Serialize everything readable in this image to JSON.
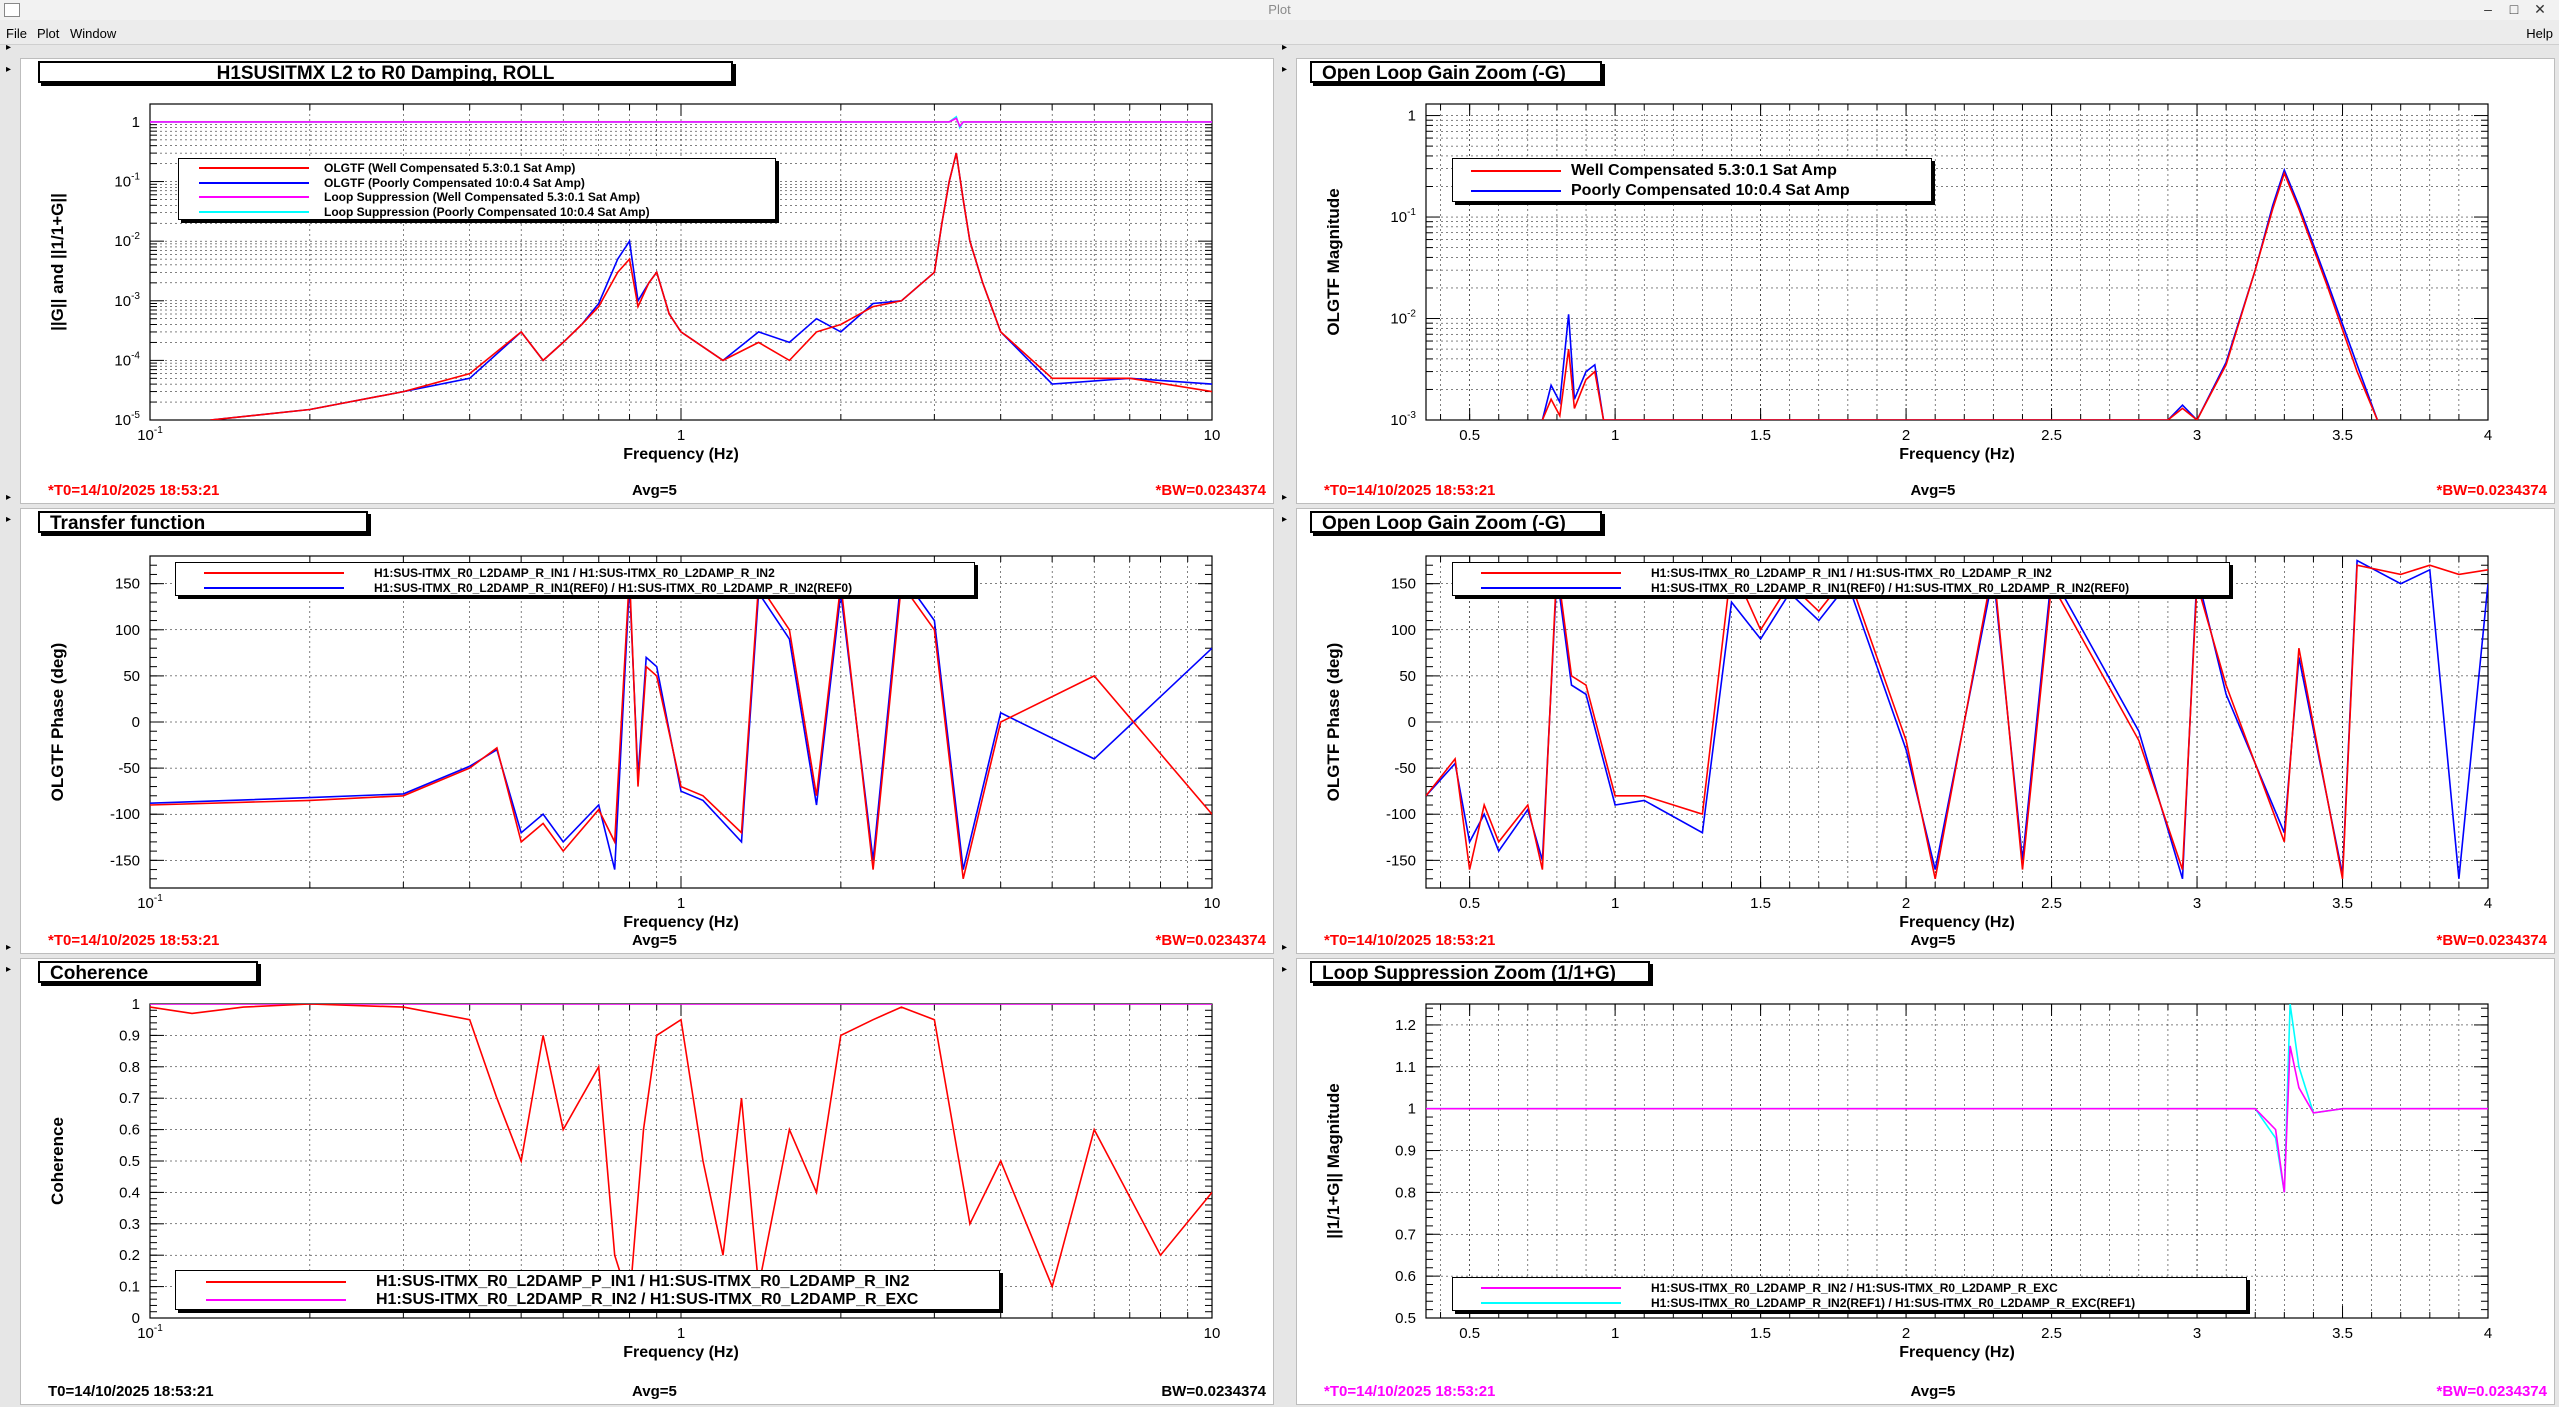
{
  "window": {
    "title": "Plot"
  },
  "menu": [
    "File",
    "Plot",
    "Window"
  ],
  "menu_help": "Help",
  "colors": {
    "red": "#ff0000",
    "blue": "#0000ff",
    "magenta": "#ff00ff",
    "cyan": "#00ffff",
    "black": "#000000"
  },
  "panels": [
    {
      "title": "H1SUSITMX L2 to R0 Damping, ROLL",
      "ylabel": "||G|| and ||1/1+G||",
      "xlabel": "Frequency (Hz)",
      "footer_left": "*T0=14/10/2025 18:53:21",
      "footer_mid": "Avg=5",
      "footer_right": "*BW=0.0234374",
      "legend": [
        "OLGTF (Well Compensated 5.3:0.1 Sat Amp)",
        "OLGTF (Poorly Compensated 10:0.4 Sat Amp)",
        "Loop Suppression (Well Compensated 5.3:0.1 Sat Amp)",
        "Loop Suppression (Poorly Compensated 10:0.4 Sat Amp)"
      ]
    },
    {
      "title": "Open Loop Gain Zoom (-G)",
      "ylabel": "OLGTF Magnitude",
      "xlabel": "Frequency (Hz)",
      "footer_left": "*T0=14/10/2025 18:53:21",
      "footer_mid": "Avg=5",
      "footer_right": "*BW=0.0234374",
      "legend": [
        "Well Compensated 5.3:0.1 Sat Amp",
        "Poorly Compensated 10:0.4 Sat Amp"
      ]
    },
    {
      "title": "Transfer function",
      "ylabel": "OLGTF Phase (deg)",
      "xlabel": "Frequency (Hz)",
      "footer_left": "*T0=14/10/2025 18:53:21",
      "footer_mid": "Avg=5",
      "footer_right": "*BW=0.0234374",
      "legend": [
        "H1:SUS-ITMX_R0_L2DAMP_R_IN1 / H1:SUS-ITMX_R0_L2DAMP_R_IN2",
        "H1:SUS-ITMX_R0_L2DAMP_R_IN1(REF0) / H1:SUS-ITMX_R0_L2DAMP_R_IN2(REF0)"
      ]
    },
    {
      "title": "Open Loop Gain Zoom (-G)",
      "ylabel": "OLGTF Phase (deg)",
      "xlabel": "Frequency (Hz)",
      "footer_left": "*T0=14/10/2025 18:53:21",
      "footer_mid": "Avg=5",
      "footer_right": "*BW=0.0234374",
      "legend": [
        "H1:SUS-ITMX_R0_L2DAMP_R_IN1 / H1:SUS-ITMX_R0_L2DAMP_R_IN2",
        "H1:SUS-ITMX_R0_L2DAMP_R_IN1(REF0) / H1:SUS-ITMX_R0_L2DAMP_R_IN2(REF0)"
      ]
    },
    {
      "title": "Coherence",
      "ylabel": "Coherence",
      "xlabel": "Frequency (Hz)",
      "footer_left": "T0=14/10/2025 18:53:21",
      "footer_mid": "Avg=5",
      "footer_right": "BW=0.0234374",
      "legend": [
        "H1:SUS-ITMX_R0_L2DAMP_P_IN1 / H1:SUS-ITMX_R0_L2DAMP_R_IN2",
        "H1:SUS-ITMX_R0_L2DAMP_R_IN2 / H1:SUS-ITMX_R0_L2DAMP_R_EXC"
      ]
    },
    {
      "title": "Loop Suppression Zoom (1/1+G)",
      "ylabel": "||1/1+G|| Magnitude",
      "xlabel": "Frequency (Hz)",
      "footer_left": "*T0=14/10/2025 18:53:21",
      "footer_mid": "Avg=5",
      "footer_right": "*BW=0.0234374",
      "legend": [
        "H1:SUS-ITMX_R0_L2DAMP_R_IN2 / H1:SUS-ITMX_R0_L2DAMP_R_EXC",
        "H1:SUS-ITMX_R0_L2DAMP_R_IN2(REF1) / H1:SUS-ITMX_R0_L2DAMP_R_EXC(REF1)"
      ]
    }
  ],
  "chart_data": [
    {
      "type": "line",
      "title": "H1SUSITMX L2 to R0 Damping, ROLL",
      "xlabel": "Frequency (Hz)",
      "ylabel": "||G|| and ||1/1+G||",
      "xscale": "log",
      "yscale": "log",
      "xlim": [
        0.1,
        10
      ],
      "ylim": [
        1e-05,
        2
      ],
      "xticks": [
        "10^-1",
        "1",
        "10"
      ],
      "yticks": [
        "10^-5",
        "10^-4",
        "10^-3",
        "10^-2",
        "10^-1",
        "1"
      ],
      "grid": true,
      "legend_position": "top-left",
      "series": [
        {
          "name": "OLGTF (Well Compensated 5.3:0.1 Sat Amp)",
          "color": "#ff0000",
          "x": [
            0.13,
            0.2,
            0.3,
            0.4,
            0.5,
            0.55,
            0.6,
            0.65,
            0.7,
            0.76,
            0.8,
            0.83,
            0.87,
            0.9,
            0.95,
            1.0,
            1.2,
            1.4,
            1.6,
            1.8,
            2.0,
            2.3,
            2.6,
            3.0,
            3.1,
            3.2,
            3.3,
            3.4,
            3.5,
            3.7,
            4.0,
            5.0,
            7.0,
            10.0
          ],
          "y": [
            1e-05,
            1.5e-05,
            3e-05,
            6e-05,
            0.0003,
            0.0001,
            0.0002,
            0.0004,
            0.0008,
            0.003,
            0.005,
            0.0008,
            0.002,
            0.003,
            0.0006,
            0.0003,
            0.0001,
            0.0002,
            0.0001,
            0.0003,
            0.0004,
            0.0008,
            0.001,
            0.003,
            0.02,
            0.1,
            0.3,
            0.05,
            0.01,
            0.002,
            0.0003,
            5e-05,
            5e-05,
            3e-05
          ]
        },
        {
          "name": "OLGTF (Poorly Compensated 10:0.4 Sat Amp)",
          "color": "#0000ff",
          "x": [
            0.13,
            0.2,
            0.3,
            0.4,
            0.5,
            0.55,
            0.6,
            0.65,
            0.7,
            0.76,
            0.8,
            0.83,
            0.87,
            0.9,
            0.95,
            1.0,
            1.2,
            1.4,
            1.6,
            1.8,
            2.0,
            2.3,
            2.6,
            3.0,
            3.1,
            3.2,
            3.3,
            3.4,
            3.5,
            3.7,
            4.0,
            5.0,
            7.0,
            10.0
          ],
          "y": [
            1e-05,
            1.5e-05,
            3e-05,
            5e-05,
            0.0003,
            0.0001,
            0.0002,
            0.0004,
            0.0009,
            0.005,
            0.01,
            0.001,
            0.002,
            0.003,
            0.0006,
            0.0003,
            0.0001,
            0.0003,
            0.0002,
            0.0005,
            0.0003,
            0.0009,
            0.001,
            0.003,
            0.02,
            0.1,
            0.3,
            0.05,
            0.01,
            0.002,
            0.0003,
            4e-05,
            5e-05,
            4e-05
          ]
        },
        {
          "name": "Loop Suppression (Well Compensated 5.3:0.1 Sat Amp)",
          "color": "#ff00ff",
          "x": [
            0.1,
            3.2,
            3.3,
            3.35,
            3.4,
            10.0
          ],
          "y": [
            1,
            1,
            1.15,
            0.85,
            1,
            1
          ]
        },
        {
          "name": "Loop Suppression (Poorly Compensated 10:0.4 Sat Amp)",
          "color": "#00ffff",
          "x": [
            0.1,
            3.2,
            3.3,
            3.35,
            3.4,
            10.0
          ],
          "y": [
            1,
            1,
            1.22,
            0.8,
            1,
            1
          ]
        }
      ]
    },
    {
      "type": "line",
      "title": "Open Loop Gain Zoom (-G)",
      "xlabel": "Frequency (Hz)",
      "ylabel": "OLGTF Magnitude",
      "xscale": "linear",
      "yscale": "log",
      "xlim": [
        0.35,
        4
      ],
      "ylim": [
        0.001,
        1.3
      ],
      "xticks": [
        "0.5",
        "1",
        "1.5",
        "2",
        "2.5",
        "3",
        "3.5",
        "4"
      ],
      "yticks": [
        "10^-3",
        "10^-2",
        "10^-1",
        "1"
      ],
      "grid": true,
      "legend_position": "top-left",
      "series": [
        {
          "name": "Well Compensated 5.3:0.1 Sat Amp",
          "color": "#ff0000",
          "x": [
            0.75,
            0.78,
            0.81,
            0.84,
            0.86,
            0.9,
            0.93,
            0.96,
            2.9,
            2.95,
            3.0,
            3.1,
            3.2,
            3.26,
            3.3,
            3.35,
            3.45,
            3.55,
            3.62
          ],
          "y": [
            0.001,
            0.0016,
            0.0011,
            0.005,
            0.0013,
            0.0025,
            0.003,
            0.001,
            0.001,
            0.0013,
            0.001,
            0.0035,
            0.03,
            0.12,
            0.27,
            0.12,
            0.02,
            0.003,
            0.001
          ]
        },
        {
          "name": "Poorly Compensated 10:0.4 Sat Amp",
          "color": "#0000ff",
          "x": [
            0.75,
            0.78,
            0.81,
            0.84,
            0.86,
            0.9,
            0.93,
            0.96,
            2.9,
            2.95,
            3.0,
            3.1,
            3.2,
            3.26,
            3.3,
            3.35,
            3.45,
            3.55,
            3.62
          ],
          "y": [
            0.001,
            0.0022,
            0.0015,
            0.011,
            0.0016,
            0.003,
            0.0035,
            0.001,
            0.001,
            0.0014,
            0.001,
            0.0037,
            0.03,
            0.13,
            0.29,
            0.13,
            0.022,
            0.0035,
            0.001
          ]
        }
      ]
    },
    {
      "type": "line",
      "title": "Transfer function",
      "xlabel": "Frequency (Hz)",
      "ylabel": "OLGTF Phase (deg)",
      "xscale": "log",
      "yscale": "linear",
      "xlim": [
        0.1,
        10
      ],
      "ylim": [
        -180,
        180
      ],
      "xticks": [
        "10^-1",
        "1",
        "10"
      ],
      "yticks": [
        "-150",
        "-100",
        "-50",
        "0",
        "50",
        "100",
        "150"
      ],
      "grid": true,
      "legend_position": "top",
      "series": [
        {
          "name": "H1:SUS-ITMX_R0_L2DAMP_R_IN1 / H1:SUS-ITMX_R0_L2DAMP_R_IN2",
          "color": "#ff0000",
          "x": [
            0.1,
            0.2,
            0.3,
            0.4,
            0.45,
            0.5,
            0.55,
            0.6,
            0.7,
            0.75,
            0.8,
            0.83,
            0.86,
            0.9,
            1.0,
            1.1,
            1.3,
            1.4,
            1.6,
            1.8,
            2.0,
            2.3,
            2.6,
            3.0,
            3.4,
            4.0,
            6.0,
            10.0
          ],
          "y": [
            -90,
            -85,
            -80,
            -50,
            -28,
            -130,
            -110,
            -140,
            -95,
            -130,
            160,
            -70,
            60,
            50,
            -70,
            -80,
            -120,
            150,
            100,
            -80,
            150,
            -160,
            150,
            100,
            -170,
            0,
            50,
            -100
          ]
        },
        {
          "name": "H1:SUS-ITMX_R0_L2DAMP_R_IN1(REF0) / H1:SUS-ITMX_R0_L2DAMP_R_IN2(REF0)",
          "color": "#0000ff",
          "x": [
            0.1,
            0.2,
            0.3,
            0.4,
            0.45,
            0.5,
            0.55,
            0.6,
            0.7,
            0.75,
            0.8,
            0.83,
            0.86,
            0.9,
            1.0,
            1.1,
            1.3,
            1.4,
            1.6,
            1.8,
            2.0,
            2.3,
            2.6,
            3.0,
            3.4,
            4.0,
            6.0,
            10.0
          ],
          "y": [
            -88,
            -82,
            -78,
            -48,
            -30,
            -120,
            -100,
            -130,
            -90,
            -160,
            150,
            -60,
            70,
            60,
            -75,
            -85,
            -130,
            140,
            90,
            -90,
            140,
            -150,
            160,
            110,
            -160,
            10,
            -40,
            80
          ]
        }
      ]
    },
    {
      "type": "line",
      "title": "Open Loop Gain Zoom (-G)",
      "xlabel": "Frequency (Hz)",
      "ylabel": "OLGTF Phase (deg)",
      "xscale": "linear",
      "yscale": "linear",
      "xlim": [
        0.35,
        4
      ],
      "ylim": [
        -180,
        180
      ],
      "xticks": [
        "0.5",
        "1",
        "1.5",
        "2",
        "2.5",
        "3",
        "3.5",
        "4"
      ],
      "yticks": [
        "-150",
        "-100",
        "-50",
        "0",
        "50",
        "100",
        "150"
      ],
      "grid": true,
      "legend_position": "top",
      "series": [
        {
          "name": "H1:SUS-ITMX_R0_L2DAMP_R_IN1 / H1:SUS-ITMX_R0_L2DAMP_R_IN2",
          "color": "#ff0000",
          "x": [
            0.35,
            0.45,
            0.5,
            0.55,
            0.6,
            0.7,
            0.75,
            0.8,
            0.85,
            0.9,
            1.0,
            1.1,
            1.3,
            1.4,
            1.5,
            1.6,
            1.7,
            1.8,
            2.0,
            2.1,
            2.3,
            2.4,
            2.5,
            2.8,
            2.95,
            3.0,
            3.1,
            3.3,
            3.35,
            3.5,
            3.55,
            3.7,
            3.8,
            3.9,
            4.0
          ],
          "y": [
            -80,
            -40,
            -160,
            -90,
            -130,
            -90,
            -160,
            170,
            50,
            40,
            -80,
            -80,
            -100,
            170,
            100,
            150,
            120,
            160,
            -20,
            -170,
            170,
            -160,
            150,
            -20,
            -160,
            150,
            40,
            -130,
            80,
            -170,
            170,
            160,
            170,
            160,
            165
          ]
        },
        {
          "name": "H1:SUS-ITMX_R0_L2DAMP_R_IN1(REF0) / H1:SUS-ITMX_R0_L2DAMP_R_IN2(REF0)",
          "color": "#0000ff",
          "x": [
            0.35,
            0.45,
            0.5,
            0.55,
            0.6,
            0.7,
            0.75,
            0.8,
            0.85,
            0.9,
            1.0,
            1.1,
            1.3,
            1.4,
            1.5,
            1.6,
            1.7,
            1.8,
            2.0,
            2.1,
            2.3,
            2.4,
            2.5,
            2.8,
            2.95,
            3.0,
            3.1,
            3.3,
            3.35,
            3.5,
            3.55,
            3.7,
            3.8,
            3.9,
            4.0
          ],
          "y": [
            -80,
            -45,
            -130,
            -100,
            -140,
            -95,
            -150,
            160,
            40,
            30,
            -90,
            -85,
            -120,
            130,
            90,
            140,
            110,
            150,
            -30,
            -160,
            160,
            -150,
            160,
            -10,
            -170,
            160,
            30,
            -120,
            70,
            -165,
            175,
            150,
            165,
            -170,
            150
          ]
        }
      ]
    },
    {
      "type": "line",
      "title": "Coherence",
      "xlabel": "Frequency (Hz)",
      "ylabel": "Coherence",
      "xscale": "log",
      "yscale": "linear",
      "xlim": [
        0.1,
        10
      ],
      "ylim": [
        0,
        1
      ],
      "xticks": [
        "10^-1",
        "1",
        "10"
      ],
      "yticks": [
        "0",
        "0.1",
        "0.2",
        "0.3",
        "0.4",
        "0.5",
        "0.6",
        "0.7",
        "0.8",
        "0.9",
        "1"
      ],
      "grid": true,
      "legend_position": "bottom",
      "series": [
        {
          "name": "H1:SUS-ITMX_R0_L2DAMP_P_IN1 / H1:SUS-ITMX_R0_L2DAMP_R_IN2",
          "color": "#ff0000",
          "x": [
            0.1,
            0.12,
            0.15,
            0.2,
            0.3,
            0.4,
            0.45,
            0.5,
            0.55,
            0.6,
            0.7,
            0.75,
            0.8,
            0.85,
            0.9,
            1.0,
            1.1,
            1.2,
            1.3,
            1.4,
            1.6,
            1.8,
            2.0,
            2.3,
            2.6,
            3.0,
            3.5,
            4.0,
            5.0,
            6.0,
            8.0,
            10.0
          ],
          "y": [
            0.99,
            0.97,
            0.99,
            1.0,
            0.99,
            0.95,
            0.7,
            0.5,
            0.9,
            0.6,
            0.8,
            0.2,
            0.05,
            0.6,
            0.9,
            0.95,
            0.5,
            0.2,
            0.7,
            0.1,
            0.6,
            0.4,
            0.9,
            0.95,
            0.99,
            0.95,
            0.3,
            0.5,
            0.1,
            0.6,
            0.2,
            0.4
          ]
        },
        {
          "name": "H1:SUS-ITMX_R0_L2DAMP_R_IN2 / H1:SUS-ITMX_R0_L2DAMP_R_EXC",
          "color": "#ff00ff",
          "x": [
            0.1,
            10.0
          ],
          "y": [
            1,
            1
          ]
        }
      ]
    },
    {
      "type": "line",
      "title": "Loop Suppression Zoom (1/1+G)",
      "xlabel": "Frequency (Hz)",
      "ylabel": "||1/1+G|| Magnitude",
      "xscale": "linear",
      "yscale": "linear",
      "xlim": [
        0.35,
        4
      ],
      "ylim": [
        0.5,
        1.25
      ],
      "xticks": [
        "0.5",
        "1",
        "1.5",
        "2",
        "2.5",
        "3",
        "3.5",
        "4"
      ],
      "yticks": [
        "0.5",
        "0.6",
        "0.7",
        "0.8",
        "0.9",
        "1",
        "1.1",
        "1.2"
      ],
      "grid": true,
      "legend_position": "bottom",
      "series": [
        {
          "name": "H1:SUS-ITMX_R0_L2DAMP_R_IN2 / H1:SUS-ITMX_R0_L2DAMP_R_EXC",
          "color": "#ff00ff",
          "x": [
            0.35,
            3.2,
            3.27,
            3.3,
            3.32,
            3.35,
            3.4,
            3.5,
            4.0
          ],
          "y": [
            1.0,
            1.0,
            0.95,
            0.8,
            1.15,
            1.05,
            0.99,
            1.0,
            1.0
          ]
        },
        {
          "name": "H1:SUS-ITMX_R0_L2DAMP_R_IN2(REF1) / H1:SUS-ITMX_R0_L2DAMP_R_EXC(REF1)",
          "color": "#00ffff",
          "x": [
            0.35,
            3.2,
            3.27,
            3.3,
            3.32,
            3.35,
            3.4,
            3.5,
            4.0
          ],
          "y": [
            1.0,
            1.0,
            0.93,
            0.8,
            1.25,
            1.1,
            0.99,
            1.0,
            1.0
          ]
        }
      ]
    }
  ]
}
